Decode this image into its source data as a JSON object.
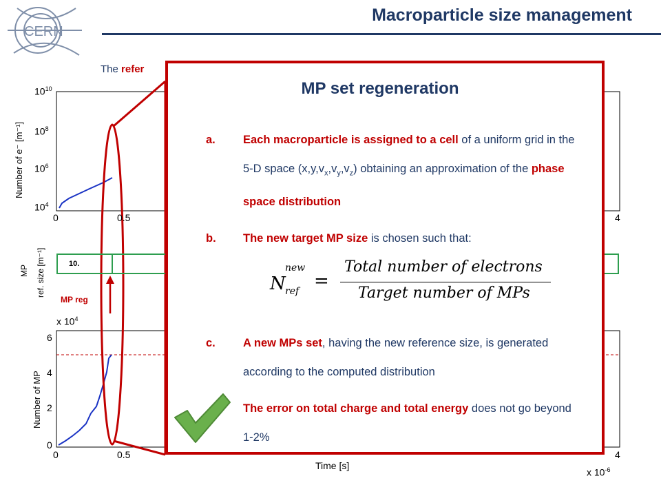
{
  "header": {
    "title": "Macroparticle size management"
  },
  "subtitle": {
    "prefix": "The ",
    "highlight": "refer"
  },
  "plots": {
    "top_ylabel": "Number of e⁻ [m⁻¹]",
    "top_ticks_y": [
      "10",
      "10",
      "10",
      "10"
    ],
    "top_exps": [
      "10",
      "8",
      "6",
      "4"
    ],
    "top_ticks_x": [
      "0",
      "0.5",
      "4"
    ],
    "mid_ylabel_1": "MP",
    "mid_ylabel_2": "ref. size [m⁻¹]",
    "mid_cell_value": "10.",
    "mpreg_label": "MP reg",
    "bottom_multiplier": "x 10",
    "bottom_multiplier_exp": "4",
    "bottom_ylabel": "Number of MP",
    "bottom_ticks_y": [
      "6",
      "4",
      "2",
      "0"
    ],
    "bottom_ticks_x": [
      "0",
      "0.5",
      "4"
    ],
    "xlabel": "Time [s]",
    "x_multiplier": "x 10",
    "x_multiplier_exp": "-6"
  },
  "overlay": {
    "title": "MP set regeneration",
    "items": [
      {
        "label": "a.",
        "bold": "Each macroparticle is assigned to a cell",
        "rest1": " of a uniform grid in the 5-D space (x,y,v",
        "rest2": "x",
        "rest3": ",v",
        "rest4": "y",
        "rest5": ",v",
        "rest6": "z",
        "rest7": ") obtaining an approximation of the ",
        "bold2": "phase space distribution"
      },
      {
        "label": "b.",
        "bold": "The new target MP size",
        "rest": " is chosen such that:"
      },
      {
        "label": "c.",
        "bold": "A new MPs set",
        "rest": ", having the new reference size, is generated according to the computed distribution"
      },
      {
        "bold": "The error on total charge and total energy",
        "rest": " does not go beyond 1-2%"
      }
    ],
    "formula": {
      "lhs": "N",
      "lhs_sup": "new",
      "lhs_sub": "ref",
      "numerator": "Total number of electrons",
      "denominator": "Target number of MPs"
    }
  },
  "colors": {
    "accent": "#c00000",
    "navy": "#1f3864",
    "green": "#2e9e4f",
    "check": "#6ab04c"
  }
}
